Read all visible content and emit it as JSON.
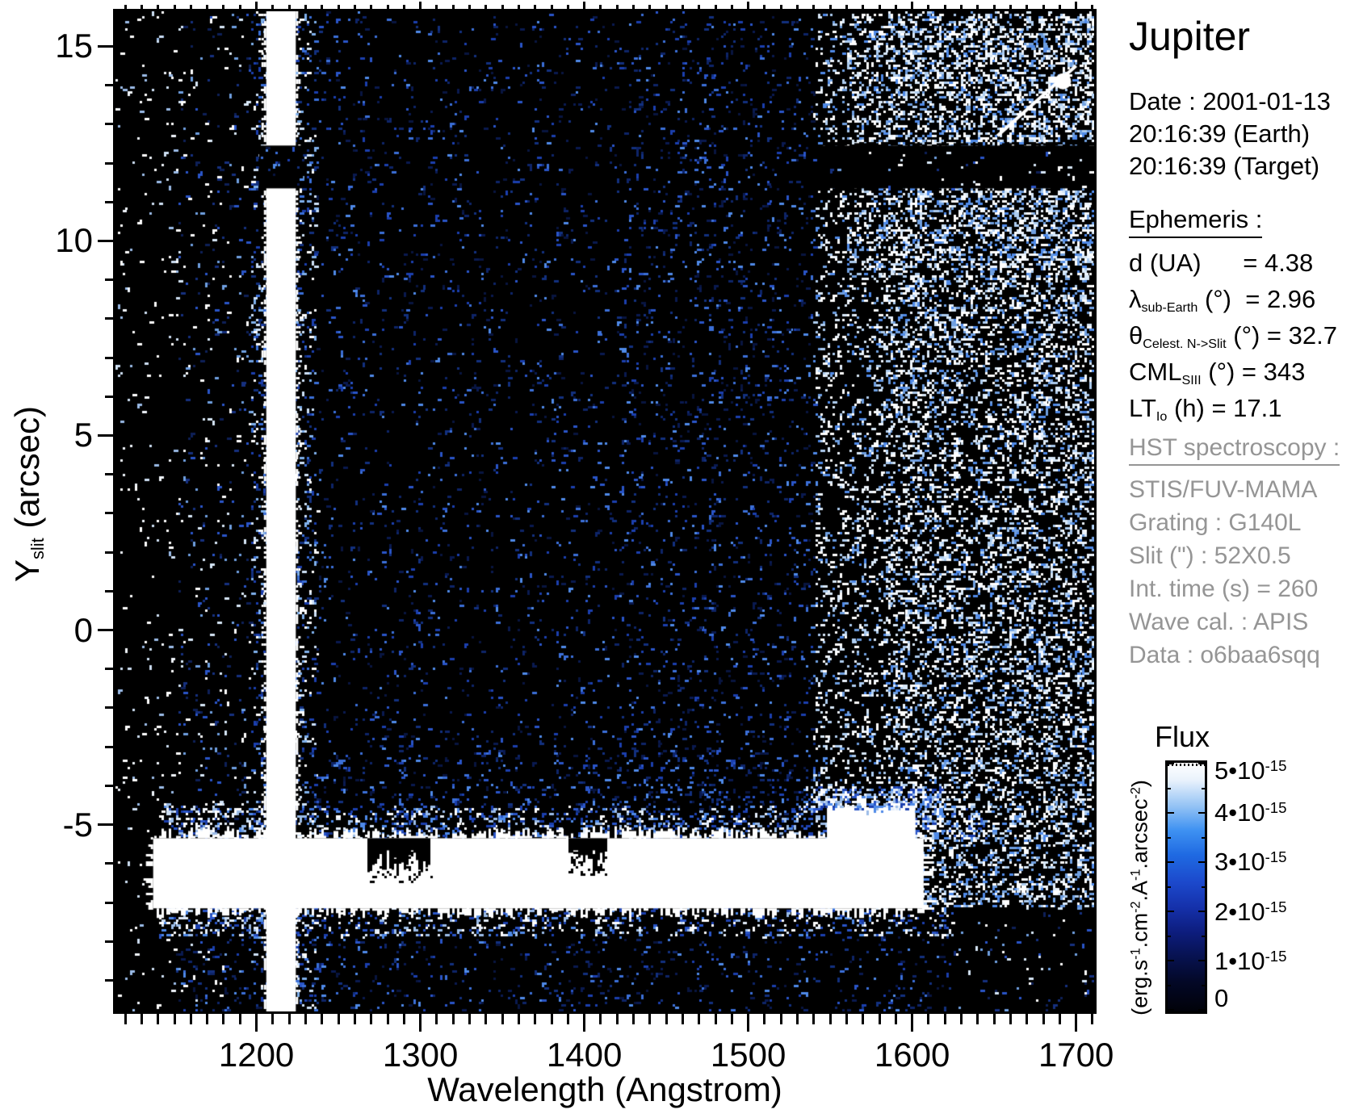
{
  "panel": {
    "title": "Jupiter",
    "date_lines": [
      "Date : 2001-01-13",
      "20:16:39 (Earth)",
      "20:16:39 (Target)"
    ],
    "ephemeris": {
      "heading": "Ephemeris :",
      "rows": [
        [
          {
            "t": "d (UA)      = 4.38"
          }
        ],
        [
          {
            "t": "λ"
          },
          {
            "s": "sub-Earth"
          },
          {
            "t": " (°)  = 2.96"
          }
        ],
        [
          {
            "t": "θ"
          },
          {
            "s": "Celest. N->Slit"
          },
          {
            "t": " (°) = 32.7"
          }
        ],
        [
          {
            "t": "CML"
          },
          {
            "s": "SIII"
          },
          {
            "t": " (°) = 343"
          }
        ],
        [
          {
            "t": "LT"
          },
          {
            "s": "Io"
          },
          {
            "t": " (h) = 17.1"
          }
        ]
      ]
    },
    "hst": {
      "heading": "HST spectroscopy :",
      "lines": [
        "STIS/FUV-MAMA",
        "Grating : G140L",
        "Slit (\") : 52X0.5",
        "Int. time (s) = 260",
        "Wave cal. : APIS",
        "Data : o6baa6sqq"
      ]
    }
  },
  "axes": {
    "x": {
      "title": "Wavelength (Angstrom)",
      "major_ticks": [
        1200,
        1300,
        1400,
        1500,
        1600,
        1700
      ],
      "minor_step": 10
    },
    "y": {
      "title_pre": "Y",
      "title_sub": "slit",
      "title_post": " (arcsec)",
      "major_ticks": [
        15,
        10,
        5,
        0,
        -5
      ],
      "minor_step": 1
    }
  },
  "colorbar": {
    "title": "Flux",
    "labels": [
      {
        "t": "5•10",
        "e": "-15"
      },
      {
        "t": "4•10",
        "e": "-15"
      },
      {
        "t": "3•10",
        "e": "-15"
      },
      {
        "t": "2•10",
        "e": "-15"
      },
      {
        "t": "1•10",
        "e": "-15"
      },
      {
        "t": "0",
        "e": ""
      }
    ],
    "unit_parts": [
      {
        "t": "(erg.s"
      },
      {
        "e": "-1"
      },
      {
        "t": ".cm"
      },
      {
        "e": "-2"
      },
      {
        "t": ".A"
      },
      {
        "e": "-1"
      },
      {
        "t": ".arcsec"
      },
      {
        "e": "-2"
      },
      {
        "t": ")"
      }
    ],
    "gradient_stops": [
      "#ffffff 0%",
      "#e9f2fc 7%",
      "#8fc0f4 18%",
      "#3f92f2 27%",
      "#1f6ae2 37%",
      "#1c49cc 48%",
      "#1531ab 58%",
      "#0d1d7e 68%",
      "#071250 78%",
      "#030827 88%",
      "#010209 100%"
    ]
  },
  "chart_data": {
    "type": "heatmap",
    "title": "Jupiter — HST STIS/FUV-MAMA 2D spectral image (G140L, 52X0.5 slit)",
    "xlabel": "Wavelength (Angstrom)",
    "ylabel": "Y slit (arcsec)",
    "x_range_angstrom": [
      1114,
      1711
    ],
    "y_range_arcsec": [
      -9.8,
      15.9
    ],
    "x_major_ticks": [
      1200,
      1300,
      1400,
      1500,
      1600,
      1700
    ],
    "y_major_ticks": [
      -5,
      0,
      5,
      10,
      15
    ],
    "flux_colorbar": {
      "min": 0,
      "max": 5e-15,
      "units": "erg.s-1.cm-2.A-1.arcsec-2",
      "tick_values": [
        5e-15,
        4e-15,
        3e-15,
        2e-15,
        1e-15,
        0
      ]
    },
    "features": {
      "geocoronal_lyman_alpha_stripe_angstrom": [
        1206,
        1224
      ],
      "lyman_alpha_halo_angstrom": [
        1196,
        1236
      ],
      "jupiter_disk_band": {
        "angstrom": [
          1137,
          1607
        ],
        "y_arcsec": [
          -7.15,
          -5.35
        ],
        "absorption_notches": [
          {
            "angstrom": [
              1268,
              1306
            ],
            "depth_v": 0.9
          },
          {
            "angstrom": [
              1390,
              1413
            ],
            "depth_v": 0.75
          }
        ],
        "bulge": {
          "angstrom": [
            1548,
            1602
          ],
          "y_arcsec": [
            -5.4,
            -4.55
          ]
        }
      },
      "occulting_bar_shadow": {
        "y_arcsec": [
          11.35,
          12.45
        ],
        "angstrom": [
          1538,
          1711
        ]
      },
      "detector_background_rise_angstrom": 1540,
      "cosmic_ray_streak": {
        "from": [
          1652,
          12.7
        ],
        "to": [
          1700,
          14.5
        ],
        "blob": [
          1692,
          14.1
        ]
      }
    },
    "render": {
      "background": "#000000",
      "palettes": {
        "whiteish": [
          "#ffffff",
          "#ffffff",
          "#f2f7fd",
          "#cfe0f4",
          "#9bbce8"
        ],
        "mix": [
          "#ffffff",
          "#d8e8f8",
          "#6f9fe0",
          "#2a55c8",
          "#16307f",
          "#0e2058"
        ],
        "blue": [
          "#2a55c8",
          "#1b3fae",
          "#12307f",
          "#0e2468",
          "#3b6fd8",
          "#0a1a50",
          "#4f8ae8",
          "#081540"
        ],
        "halo": [
          "#ffffff",
          "#cfe2f8",
          "#7fb0ec",
          "#3a6fd8",
          "#1b3fae",
          "#12307f"
        ],
        "dense": [
          "#ffffff",
          "#ffffff",
          "#eef5fd",
          "#d8e8f8",
          "#aecdf0",
          "#6f9fe0",
          "#4f8ae8"
        ],
        "fringe": [
          "#ffffff",
          "#e4eefb",
          "#9bbce8",
          "#4f8ae8",
          "#2a55c8",
          "#1b3fae"
        ]
      },
      "noise_regions": [
        {
          "name": "left-margin",
          "l": [
            1114,
            1152
          ],
          "v": [
            -9.8,
            15.9
          ],
          "d": 2.6,
          "pal": "whiteish"
        },
        {
          "name": "left-mid",
          "l": [
            1152,
            1196
          ],
          "v": [
            -9.8,
            15.9
          ],
          "d": 5,
          "pal": "mix"
        },
        {
          "name": "lya-halo",
          "l": [
            1196,
            1236
          ],
          "v": [
            -9.8,
            15.9
          ],
          "d": 17,
          "pal": "halo"
        },
        {
          "name": "center",
          "l": [
            1236,
            1420
          ],
          "v": [
            -7.1,
            15.9
          ],
          "d": 4.5,
          "pal": "blue"
        },
        {
          "name": "center-right",
          "l": [
            1420,
            1540
          ],
          "v": [
            -7.1,
            15.9
          ],
          "d": 7.5,
          "pal": "blue"
        },
        {
          "name": "above-band",
          "l": [
            1236,
            1545
          ],
          "v": [
            -4.5,
            -3.1
          ],
          "d": 6,
          "pal": "blue"
        },
        {
          "name": "dense-ramp",
          "l": [
            1540,
            1582
          ],
          "v": [
            -7.1,
            15.9
          ],
          "d": 18,
          "pal": "dense"
        },
        {
          "name": "dense",
          "l": [
            1582,
            1711
          ],
          "v": [
            -7.1,
            15.9
          ],
          "d": 34,
          "pal": "dense"
        },
        {
          "name": "dense-top-corner",
          "l": [
            1560,
            1711
          ],
          "v": [
            9.0,
            15.9
          ],
          "d": 14,
          "pal": "dense"
        },
        {
          "name": "band-fringe-top",
          "l": [
            1140,
            1645
          ],
          "v": [
            -5.4,
            -4.5
          ],
          "d": 24,
          "pal": "fringe"
        },
        {
          "name": "band-fringe-bottom",
          "l": [
            1140,
            1625
          ],
          "v": [
            -7.85,
            -7.1
          ],
          "d": 22,
          "pal": "fringe"
        },
        {
          "name": "below-band",
          "l": [
            1150,
            1625
          ],
          "v": [
            -9.8,
            -7.85
          ],
          "d": 6.5,
          "pal": "blue"
        },
        {
          "name": "bottom-right-corner",
          "l": [
            1625,
            1711
          ],
          "v": [
            -9.8,
            -7.1
          ],
          "d": 3.5,
          "pal": "mix"
        },
        {
          "name": "band-left-spray",
          "l": [
            1140,
            1200
          ],
          "v": [
            -7.6,
            -4.4
          ],
          "d": 11,
          "pal": "whiteish"
        }
      ]
    }
  }
}
